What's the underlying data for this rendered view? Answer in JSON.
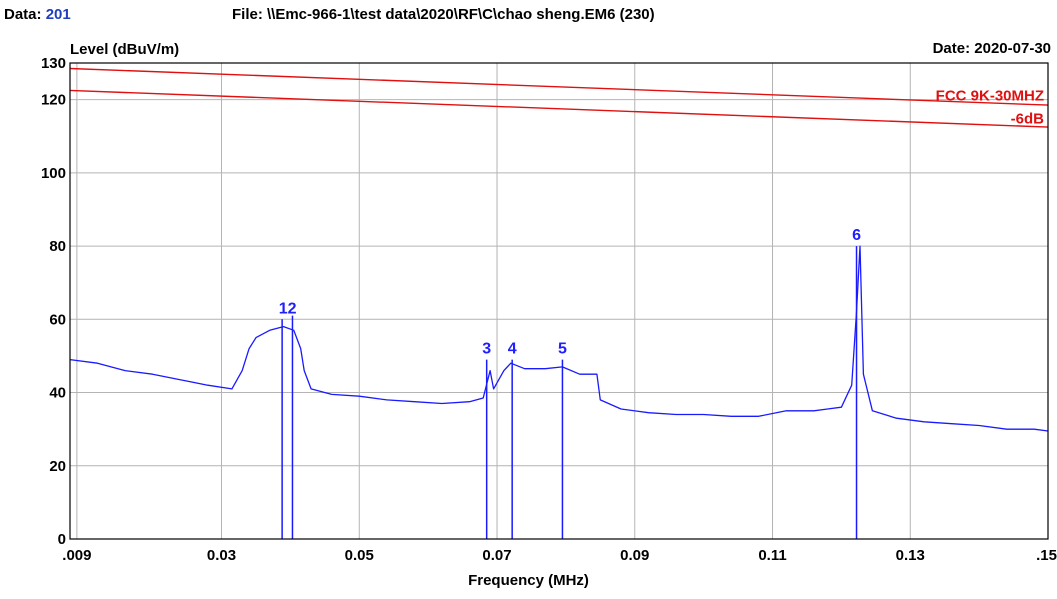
{
  "header": {
    "data_label": "Data:",
    "data_value": "201",
    "file": "File: \\\\Emc-966-1\\test data\\2020\\RF\\C\\chao sheng.EM6  (230)",
    "date": "Date: 2020-07-30"
  },
  "colors": {
    "trace": "#1a1aff",
    "limit": "#e01010",
    "grid": "#b4b4b4",
    "marker_label": "#2020ff",
    "data_value": "#1f3fbf"
  },
  "chart_data": {
    "type": "line",
    "xlabel": "Frequency (MHz)",
    "ylabel": "Level (dBuV/m)",
    "xlim": [
      0.008,
      0.15
    ],
    "ylim": [
      0,
      130
    ],
    "x_ticks": [
      0.009,
      0.03,
      0.05,
      0.07,
      0.09,
      0.11,
      0.13,
      0.15
    ],
    "x_tick_labels": [
      ".009",
      "0.03",
      "0.05",
      "0.07",
      "0.09",
      "0.11",
      "0.13",
      ".15"
    ],
    "y_ticks": [
      0,
      20,
      40,
      60,
      80,
      100,
      120,
      130
    ],
    "y_tick_labels": [
      "0",
      "20",
      "40",
      "60",
      "80",
      "100",
      "120",
      "130"
    ],
    "grid": true,
    "limit_lines": [
      {
        "name": "FCC 9K-30MHZ",
        "x": [
          0.008,
          0.15
        ],
        "y": [
          128.5,
          118.5
        ]
      },
      {
        "name": "-6dB",
        "x": [
          0.008,
          0.15
        ],
        "y": [
          122.5,
          112.5
        ]
      }
    ],
    "series": [
      {
        "x": [
          0.008,
          0.012,
          0.016,
          0.02,
          0.024,
          0.028,
          0.0315,
          0.033,
          0.034,
          0.035,
          0.037,
          0.039,
          0.0405,
          0.0415,
          0.042,
          0.043,
          0.046,
          0.05,
          0.054,
          0.058,
          0.062,
          0.066,
          0.068,
          0.069,
          0.0695,
          0.071,
          0.072,
          0.074,
          0.077,
          0.0795,
          0.082,
          0.0845,
          0.085,
          0.088,
          0.092,
          0.096,
          0.1,
          0.104,
          0.108,
          0.112,
          0.116,
          0.118,
          0.12,
          0.1215,
          0.1222,
          0.1227,
          0.1232,
          0.1245,
          0.128,
          0.132,
          0.136,
          0.14,
          0.144,
          0.148,
          0.15
        ],
        "y": [
          49,
          48,
          46,
          45,
          43.5,
          42,
          41,
          46,
          52,
          55,
          57,
          58,
          57,
          52,
          46,
          41,
          39.5,
          39,
          38,
          37.5,
          37,
          37.5,
          38.5,
          46,
          41,
          46,
          48,
          46.5,
          46.5,
          47,
          45,
          45,
          38,
          35.5,
          34.5,
          34,
          34,
          33.5,
          33.5,
          35,
          35,
          35.5,
          36,
          42,
          62,
          80,
          45,
          35,
          33,
          32,
          31.5,
          31,
          30,
          30,
          29.5
        ]
      }
    ],
    "markers": [
      {
        "label": "1",
        "x": 0.0388,
        "y": 60
      },
      {
        "label": "2",
        "x": 0.0403,
        "y": 61
      },
      {
        "label": "3",
        "x": 0.0685,
        "y": 49
      },
      {
        "label": "4",
        "x": 0.0722,
        "y": 49
      },
      {
        "label": "5",
        "x": 0.0795,
        "y": 49
      },
      {
        "label": "6",
        "x": 0.1222,
        "y": 80
      }
    ],
    "marker_label_texts": [
      {
        "text": "12",
        "x": 0.0396,
        "y": 60
      },
      {
        "text": "3",
        "x": 0.0685,
        "y": 49
      },
      {
        "text": "4",
        "x": 0.0722,
        "y": 49
      },
      {
        "text": "5",
        "x": 0.0795,
        "y": 49
      },
      {
        "text": "6",
        "x": 0.1222,
        "y": 80
      }
    ]
  }
}
